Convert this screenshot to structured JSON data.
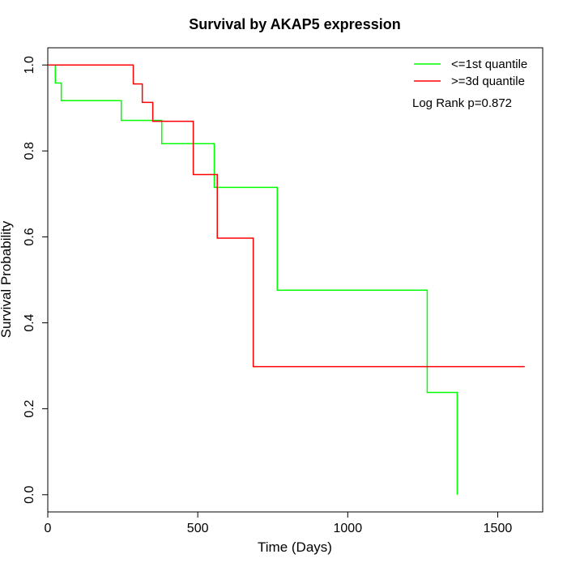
{
  "chart_data": {
    "type": "line",
    "subtype": "kaplan-meier-step",
    "title": "Survival by AKAP5 expression",
    "xlabel": "Time (Days)",
    "ylabel": "Survival Probability",
    "xlim": [
      0,
      1650
    ],
    "ylim": [
      -0.04,
      1.04
    ],
    "x_ticks": [
      0,
      500,
      1000,
      1500
    ],
    "y_ticks": [
      0.0,
      0.2,
      0.4,
      0.6,
      0.8,
      1.0
    ],
    "y_tick_labels": [
      "0.0",
      "0.2",
      "0.4",
      "0.6",
      "0.8",
      "1.0"
    ],
    "grid": false,
    "legend_position": "top-right",
    "annotation": "Log Rank p=0.872",
    "series": [
      {
        "name": "<=1st quantile",
        "color": "#00ff00",
        "x": [
          0,
          25,
          45,
          245,
          380,
          555,
          765,
          1265,
          1365
        ],
        "y": [
          1.0,
          0.958,
          0.917,
          0.871,
          0.817,
          0.715,
          0.476,
          0.238,
          0.0
        ]
      },
      {
        "name": ">=3d quantile",
        "color": "#ff0000",
        "x": [
          0,
          285,
          315,
          350,
          485,
          565,
          685,
          1590
        ],
        "y": [
          1.0,
          0.956,
          0.913,
          0.869,
          0.745,
          0.597,
          0.298,
          0.298
        ]
      }
    ]
  }
}
